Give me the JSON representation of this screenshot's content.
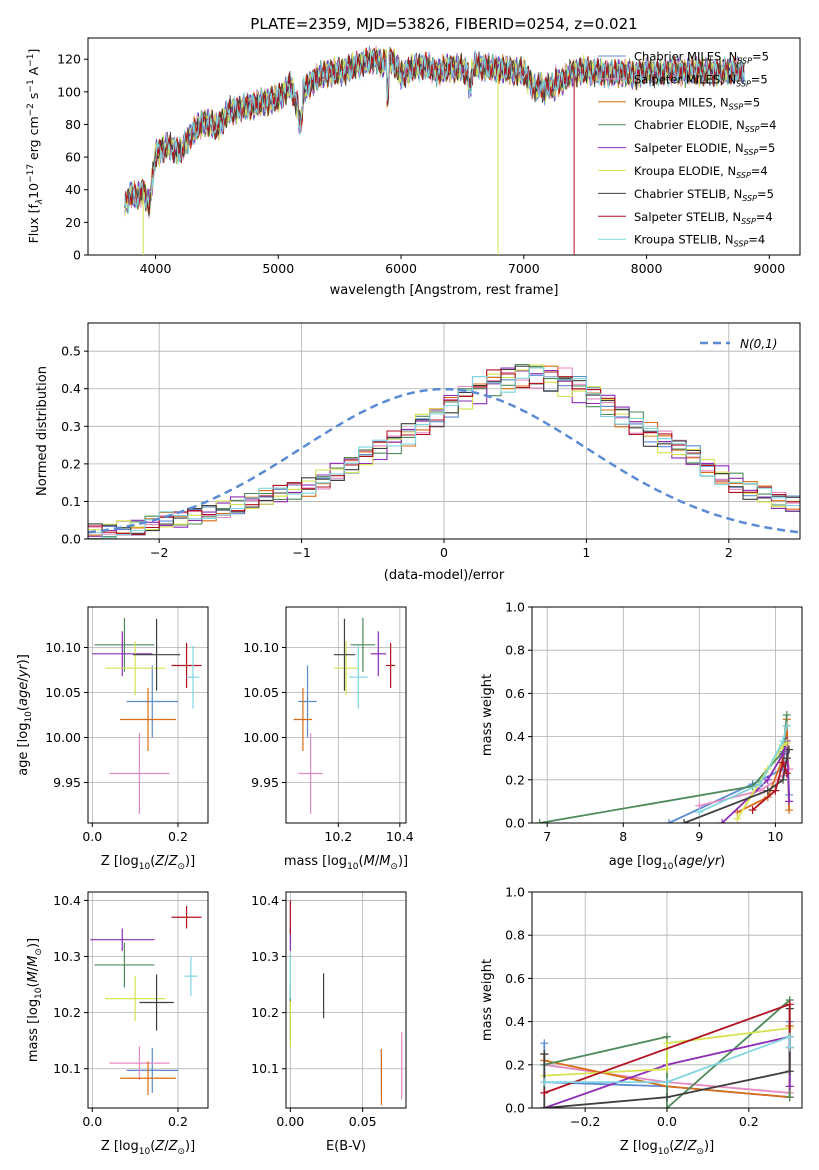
{
  "figure_title": "PLATE=2359, MJD=53826, FIBERID=0254, z=0.021",
  "series": [
    {
      "name": "Chabrier MILES, N$_{SSP}$=5",
      "legend": "Chabrier MILES, N",
      "sub": "SSP",
      "eq": "=5",
      "color": "#5b8bd4"
    },
    {
      "name": "Salpeter MILES, N$_{SSP}$=5",
      "legend": "Salpeter MILES, N",
      "sub": "SSP",
      "eq": "=5",
      "color": "#e68ac3"
    },
    {
      "name": "Kroupa MILES, N$_{SSP}$=5",
      "legend": "Kroupa MILES, N",
      "sub": "SSP",
      "eq": "=5",
      "color": "#d96d15"
    },
    {
      "name": "Chabrier ELODIE, N$_{SSP}$=4",
      "legend": "Chabrier ELODIE, N",
      "sub": "SSP",
      "eq": "=4",
      "color": "#4f8a5a"
    },
    {
      "name": "Salpeter ELODIE, N$_{SSP}$=5",
      "legend": "Salpeter ELODIE, N",
      "sub": "SSP",
      "eq": "=5",
      "color": "#8e2cb5"
    },
    {
      "name": "Kroupa ELODIE, N$_{SSP}$=4",
      "legend": "Kroupa ELODIE, N",
      "sub": "SSP",
      "eq": "=4",
      "color": "#d6e34f"
    },
    {
      "name": "Chabrier STELIB, N$_{SSP}$=5",
      "legend": "Chabrier STELIB, N",
      "sub": "SSP",
      "eq": "=5",
      "color": "#3f3f3f"
    },
    {
      "name": "Salpeter STELIB, N$_{SSP}$=4",
      "legend": "Salpeter STELIB, N",
      "sub": "SSP",
      "eq": "=4",
      "color": "#b01020"
    },
    {
      "name": "Kroupa STELIB, N$_{SSP}$=4",
      "legend": "Kroupa STELIB, N",
      "sub": "SSP",
      "eq": "=4",
      "color": "#7fd6e0"
    }
  ],
  "chart_data": [
    {
      "id": "spectrum",
      "type": "line",
      "title": "PLATE=2359, MJD=53826, FIBERID=0254, z=0.021",
      "xlabel": "wavelength [Angstrom, rest frame]",
      "ylabel": "Flux [f",
      "xlim": [
        3450,
        9250
      ],
      "ylim": [
        0,
        133
      ],
      "xticks": [
        4000,
        5000,
        6000,
        7000,
        8000,
        9000
      ],
      "yticks": [
        0,
        20,
        40,
        60,
        80,
        100,
        120
      ],
      "grid": false,
      "legend": "top-right",
      "x": [
        3750,
        3800,
        3850,
        3900,
        3950,
        4000,
        4100,
        4200,
        4300,
        4400,
        4500,
        4600,
        4700,
        4800,
        4900,
        5000,
        5100,
        5150,
        5200,
        5300,
        5400,
        5500,
        5600,
        5700,
        5800,
        5850,
        5890,
        5950,
        6000,
        6100,
        6200,
        6300,
        6400,
        6500,
        6563,
        6600,
        6700,
        6800,
        6900,
        7000,
        7100,
        7200,
        7300,
        7400,
        7500,
        7600,
        7700,
        7800,
        7900,
        8000,
        8100,
        8200,
        8300,
        8400,
        8500,
        8600,
        8700,
        8800
      ],
      "y": [
        30,
        38,
        35,
        40,
        30,
        62,
        67,
        63,
        75,
        82,
        78,
        88,
        90,
        92,
        94,
        96,
        104,
        92,
        100,
        108,
        112,
        112,
        115,
        118,
        120,
        116,
        122,
        117,
        110,
        115,
        116,
        112,
        115,
        114,
        110,
        116,
        115,
        114,
        113,
        112,
        101,
        110,
        106,
        112,
        113,
        112,
        111,
        112,
        110,
        113,
        111,
        113,
        112,
        113,
        112,
        112,
        113,
        112
      ]
    },
    {
      "id": "residuals",
      "type": "histogram",
      "xlabel": "(data-model)/error",
      "ylabel": "Normed distribution",
      "xlim": [
        -2.5,
        2.5
      ],
      "ylim": [
        0,
        0.575
      ],
      "xticks": [
        -2,
        -1,
        0,
        1,
        2
      ],
      "yticks": [
        0.0,
        0.1,
        0.2,
        0.3,
        0.4,
        0.5
      ],
      "grid": true,
      "legend": "top-right",
      "reference_label": "N(0,1)",
      "bin_start": -2.5,
      "bin_width": 0.1,
      "histogram_values": [
        0.02,
        0.02,
        0.03,
        0.03,
        0.04,
        0.05,
        0.05,
        0.06,
        0.07,
        0.08,
        0.09,
        0.1,
        0.11,
        0.12,
        0.13,
        0.14,
        0.16,
        0.18,
        0.2,
        0.22,
        0.24,
        0.26,
        0.28,
        0.31,
        0.33,
        0.36,
        0.38,
        0.4,
        0.42,
        0.43,
        0.44,
        0.44,
        0.43,
        0.42,
        0.4,
        0.38,
        0.36,
        0.33,
        0.31,
        0.28,
        0.26,
        0.24,
        0.22,
        0.19,
        0.17,
        0.15,
        0.13,
        0.12,
        0.1,
        0.09
      ]
    },
    {
      "id": "age_vs_Z",
      "type": "scatter",
      "errorbars": true,
      "xlabel": "Z [log",
      "ylabel": "age  [log",
      "xlim": [
        -0.01,
        0.27
      ],
      "ylim": [
        9.905,
        10.145
      ],
      "xticks": [
        0.0,
        0.2
      ],
      "yticks": [
        9.95,
        10.0,
        10.05,
        10.1
      ],
      "grid": true,
      "points": [
        {
          "x": 0.14,
          "y": 10.04,
          "xerr": 0.06,
          "yerr": 0.04
        },
        {
          "x": 0.11,
          "y": 9.96,
          "xerr": 0.07,
          "yerr": 0.045
        },
        {
          "x": 0.13,
          "y": 10.02,
          "xerr": 0.065,
          "yerr": 0.035
        },
        {
          "x": 0.075,
          "y": 10.103,
          "xerr": 0.07,
          "yerr": 0.03
        },
        {
          "x": 0.07,
          "y": 10.093,
          "xerr": 0.07,
          "yerr": 0.025
        },
        {
          "x": 0.1,
          "y": 10.077,
          "xerr": 0.07,
          "yerr": 0.03
        },
        {
          "x": 0.15,
          "y": 10.092,
          "xerr": 0.055,
          "yerr": 0.04
        },
        {
          "x": 0.22,
          "y": 10.08,
          "xerr": 0.035,
          "yerr": 0.025
        },
        {
          "x": 0.235,
          "y": 10.067,
          "xerr": 0.015,
          "yerr": 0.035
        }
      ]
    },
    {
      "id": "age_vs_mass",
      "type": "scatter",
      "errorbars": true,
      "xlabel": "mass [log",
      "ylabel": "",
      "xlim": [
        10.03,
        10.42
      ],
      "ylim": [
        9.905,
        10.145
      ],
      "xticks": [
        10.2,
        10.4
      ],
      "yticks": [
        9.95,
        10.0,
        10.05,
        10.1
      ],
      "grid": true,
      "points": [
        {
          "x": 10.1,
          "y": 10.04,
          "xerr": 0.03,
          "yerr": 0.04
        },
        {
          "x": 10.11,
          "y": 9.96,
          "xerr": 0.04,
          "yerr": 0.045
        },
        {
          "x": 10.085,
          "y": 10.02,
          "xerr": 0.03,
          "yerr": 0.035
        },
        {
          "x": 10.28,
          "y": 10.103,
          "xerr": 0.04,
          "yerr": 0.03
        },
        {
          "x": 10.33,
          "y": 10.093,
          "xerr": 0.025,
          "yerr": 0.025
        },
        {
          "x": 10.225,
          "y": 10.077,
          "xerr": 0.04,
          "yerr": 0.03
        },
        {
          "x": 10.22,
          "y": 10.092,
          "xerr": 0.035,
          "yerr": 0.04
        },
        {
          "x": 10.37,
          "y": 10.08,
          "xerr": 0.015,
          "yerr": 0.025
        },
        {
          "x": 10.265,
          "y": 10.067,
          "xerr": 0.03,
          "yerr": 0.035
        }
      ]
    },
    {
      "id": "weight_vs_age",
      "type": "line",
      "xlabel": "age  [log",
      "ylabel": "mass weight",
      "xlim": [
        6.8,
        10.35
      ],
      "ylim": [
        0,
        1.0
      ],
      "xticks": [
        7,
        8,
        9,
        10
      ],
      "yticks": [
        0.0,
        0.2,
        0.4,
        0.6,
        0.8,
        1.0
      ],
      "grid": true,
      "series_points": [
        [
          [
            8.6,
            0.0
          ],
          [
            9.7,
            0.18
          ],
          [
            10.1,
            0.25
          ],
          [
            10.15,
            0.45
          ],
          [
            10.18,
            0.13
          ]
        ],
        [
          [
            9.0,
            0.08
          ],
          [
            9.8,
            0.15
          ],
          [
            10.1,
            0.22
          ],
          [
            10.15,
            0.3
          ],
          [
            10.18,
            0.25
          ]
        ],
        [
          [
            9.5,
            0.05
          ],
          [
            9.9,
            0.12
          ],
          [
            10.1,
            0.3
          ],
          [
            10.15,
            0.48
          ],
          [
            10.18,
            0.06
          ]
        ],
        [
          [
            6.9,
            0.0
          ],
          [
            9.7,
            0.17
          ],
          [
            10.1,
            0.33
          ],
          [
            10.15,
            0.5
          ]
        ],
        [
          [
            9.3,
            0.0
          ],
          [
            9.9,
            0.2
          ],
          [
            10.1,
            0.32
          ],
          [
            10.15,
            0.38
          ],
          [
            10.18,
            0.1
          ]
        ],
        [
          [
            9.5,
            0.02
          ],
          [
            9.9,
            0.25
          ],
          [
            10.1,
            0.36
          ],
          [
            10.15,
            0.37
          ]
        ],
        [
          [
            8.8,
            0.0
          ],
          [
            9.9,
            0.15
          ],
          [
            10.1,
            0.2
          ],
          [
            10.15,
            0.3
          ],
          [
            10.18,
            0.34
          ]
        ],
        [
          [
            9.7,
            0.06
          ],
          [
            10.0,
            0.15
          ],
          [
            10.1,
            0.28
          ],
          [
            10.15,
            0.23
          ]
        ],
        [
          [
            9.0,
            0.05
          ],
          [
            9.8,
            0.18
          ],
          [
            10.1,
            0.38
          ],
          [
            10.15,
            0.45
          ]
        ]
      ]
    },
    {
      "id": "mass_vs_Z",
      "type": "scatter",
      "errorbars": true,
      "xlabel": "Z [log",
      "ylabel": "mass [log",
      "xlim": [
        -0.01,
        0.27
      ],
      "ylim": [
        10.03,
        10.415
      ],
      "xticks": [
        0.0,
        0.2
      ],
      "yticks": [
        10.1,
        10.2,
        10.3,
        10.4
      ],
      "grid": true,
      "points": [
        {
          "x": 0.14,
          "y": 10.097,
          "xerr": 0.06,
          "yerr": 0.04
        },
        {
          "x": 0.11,
          "y": 10.11,
          "xerr": 0.07,
          "yerr": 0.03
        },
        {
          "x": 0.13,
          "y": 10.083,
          "xerr": 0.065,
          "yerr": 0.03
        },
        {
          "x": 0.075,
          "y": 10.285,
          "xerr": 0.07,
          "yerr": 0.04
        },
        {
          "x": 0.07,
          "y": 10.33,
          "xerr": 0.075,
          "yerr": 0.02
        },
        {
          "x": 0.1,
          "y": 10.225,
          "xerr": 0.07,
          "yerr": 0.04
        },
        {
          "x": 0.15,
          "y": 10.218,
          "xerr": 0.04,
          "yerr": 0.05
        },
        {
          "x": 0.22,
          "y": 10.37,
          "xerr": 0.035,
          "yerr": 0.02
        },
        {
          "x": 0.23,
          "y": 10.265,
          "xerr": 0.015,
          "yerr": 0.035
        }
      ]
    },
    {
      "id": "mass_vs_EBV",
      "type": "scatter",
      "errorbars": true,
      "xlabel": "E(B-V)",
      "ylabel": "",
      "xlim": [
        -0.003,
        0.08
      ],
      "ylim": [
        10.03,
        10.415
      ],
      "xticks": [
        0.0,
        0.05
      ],
      "yticks": [
        10.1,
        10.2,
        10.3,
        10.4
      ],
      "grid": true,
      "points": [
        {
          "x": 0.063,
          "y": 10.095,
          "xerr": 0,
          "yerr": 0.04
        },
        {
          "x": 0.077,
          "y": 10.105,
          "xerr": 0,
          "yerr": 0.06
        },
        {
          "x": 0.063,
          "y": 10.085,
          "xerr": 0,
          "yerr": 0.05
        },
        {
          "x": 0.0,
          "y": 10.2,
          "xerr": 0,
          "yerr": 0.05
        },
        {
          "x": 0.0,
          "y": 10.33,
          "xerr": 0,
          "yerr": 0.02
        },
        {
          "x": 0.0,
          "y": 10.18,
          "xerr": 0,
          "yerr": 0.04
        },
        {
          "x": 0.023,
          "y": 10.23,
          "xerr": 0,
          "yerr": 0.04
        },
        {
          "x": 0.0,
          "y": 10.37,
          "xerr": 0,
          "yerr": 0.03
        },
        {
          "x": 0.0,
          "y": 10.265,
          "xerr": 0,
          "yerr": 0.04
        }
      ]
    },
    {
      "id": "weight_vs_Z",
      "type": "line",
      "xlabel": "Z [log",
      "ylabel": "mass weight",
      "xlim": [
        -0.33,
        0.33
      ],
      "ylim": [
        0,
        1.0
      ],
      "xticks": [
        -0.2,
        0.0,
        0.2
      ],
      "yticks": [
        0.0,
        0.2,
        0.4,
        0.6,
        0.8,
        1.0
      ],
      "grid": true,
      "series_points": [
        [
          [
            -0.3,
            0.3
          ],
          [
            -0.3,
            0.12
          ],
          [
            0.0,
            0.1
          ],
          [
            0.3,
            0.05
          ],
          [
            0.3,
            0.4
          ]
        ],
        [
          [
            -0.3,
            0.2
          ],
          [
            0.0,
            0.12
          ],
          [
            0.3,
            0.07
          ],
          [
            0.3,
            0.38
          ]
        ],
        [
          [
            -0.3,
            0.25
          ],
          [
            -0.3,
            0.22
          ],
          [
            0.0,
            0.1
          ],
          [
            0.3,
            0.05
          ],
          [
            0.3,
            0.38
          ]
        ],
        [
          [
            -0.3,
            0.2
          ],
          [
            0.0,
            0.33
          ],
          [
            0.0,
            0.0
          ],
          [
            0.3,
            0.5
          ],
          [
            0.3,
            0.05
          ]
        ],
        [
          [
            -0.3,
            0.0
          ],
          [
            0.0,
            0.2
          ],
          [
            0.3,
            0.33
          ],
          [
            0.3,
            0.1
          ]
        ],
        [
          [
            -0.3,
            0.15
          ],
          [
            0.0,
            0.18
          ],
          [
            0.0,
            0.3
          ],
          [
            0.3,
            0.37
          ]
        ],
        [
          [
            -0.3,
            0.25
          ],
          [
            -0.3,
            0.0
          ],
          [
            0.0,
            0.05
          ],
          [
            0.3,
            0.17
          ],
          [
            0.3,
            0.46
          ]
        ],
        [
          [
            -0.3,
            0.07
          ],
          [
            0.3,
            0.48
          ],
          [
            0.3,
            0.28
          ]
        ],
        [
          [
            -0.3,
            0.12
          ],
          [
            0.0,
            0.12
          ],
          [
            0.3,
            0.33
          ],
          [
            0.3,
            0.28
          ]
        ]
      ]
    }
  ]
}
